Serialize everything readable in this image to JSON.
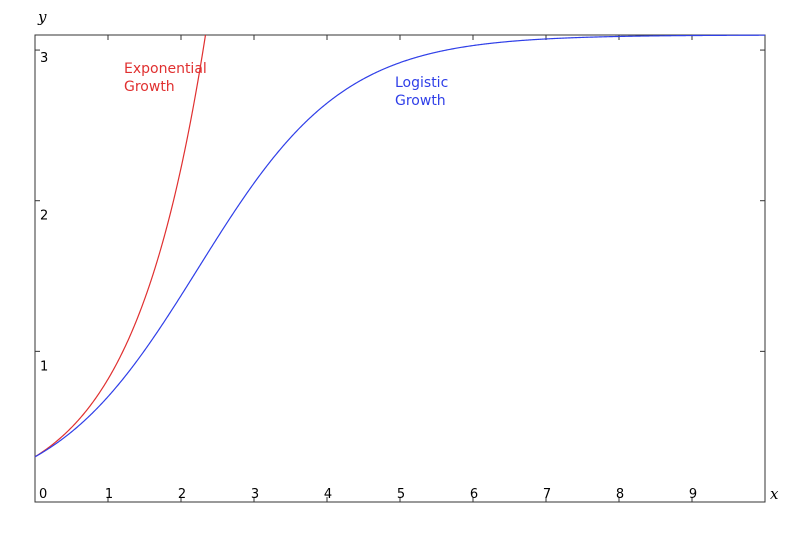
{
  "chart_data": {
    "type": "line",
    "xlabel": "x",
    "ylabel": "y",
    "xlim": [
      0,
      10
    ],
    "ylim": [
      0,
      3.1
    ],
    "x_ticks": [
      0,
      1,
      2,
      3,
      4,
      5,
      6,
      7,
      8,
      9
    ],
    "y_ticks": [
      1,
      2,
      3
    ],
    "x_tick_labels": [
      "0",
      "1",
      "2",
      "3",
      "4",
      "5",
      "6",
      "7",
      "8",
      "9"
    ],
    "y_tick_labels": [
      "1",
      "2",
      "3"
    ],
    "grid": false,
    "legend": "none",
    "series": [
      {
        "name": "Exponential Growth",
        "label_lines": [
          "Exponential",
          "Growth"
        ],
        "color": "#e03030",
        "function": "y = 0.3 * exp(x)",
        "x": [
          0,
          0.4,
          0.8,
          1.2,
          1.6,
          2.0,
          2.3,
          2.45
        ],
        "y": [
          0.3,
          0.45,
          0.67,
          1.0,
          1.49,
          2.22,
          2.99,
          3.1
        ]
      },
      {
        "name": "Logistic Growth",
        "label_lines": [
          "Logistic",
          "Growth"
        ],
        "color": "#2f3fe8",
        "function": "y = 3.1 / (1 + 9.333 * exp(-x))",
        "x": [
          0,
          1,
          2,
          3,
          4,
          5,
          6,
          7,
          8,
          9,
          10
        ],
        "y": [
          0.3,
          0.71,
          1.37,
          2.11,
          2.64,
          2.92,
          3.04,
          3.08,
          3.1,
          3.1,
          3.1
        ]
      }
    ]
  }
}
